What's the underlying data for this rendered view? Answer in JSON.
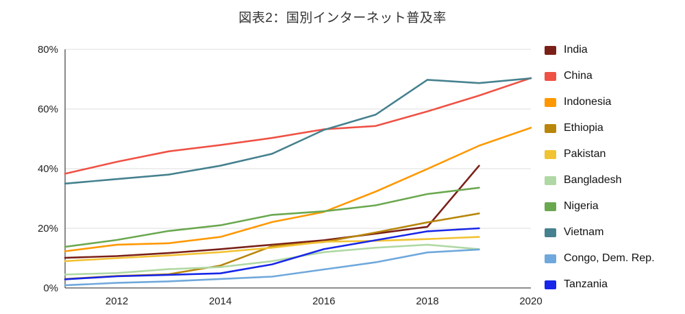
{
  "title": "図表2：国別インターネット普及率",
  "chart_data": {
    "type": "line",
    "unit": "%",
    "x": [
      2011,
      2012,
      2013,
      2014,
      2015,
      2016,
      2017,
      2018,
      2019,
      2020
    ],
    "xlim": [
      2011,
      2020
    ],
    "ylim": [
      0,
      80
    ],
    "grid": true,
    "legend_position": "right",
    "x_ticks": [
      {
        "value": 2012,
        "label": "2012"
      },
      {
        "value": 2014,
        "label": "2014"
      },
      {
        "value": 2016,
        "label": "2016"
      },
      {
        "value": 2018,
        "label": "2018"
      },
      {
        "value": 2020,
        "label": "2020"
      }
    ],
    "y_ticks": [
      {
        "value": 0,
        "label": "0%"
      },
      {
        "value": 20,
        "label": "20%"
      },
      {
        "value": 40,
        "label": "40%"
      },
      {
        "value": 60,
        "label": "60%"
      },
      {
        "value": 80,
        "label": "80%"
      }
    ],
    "series": [
      {
        "name": "India",
        "color": "#7a2018",
        "values": [
          10.1,
          10.7,
          11.7,
          13.0,
          14.5,
          16.0,
          18.2,
          20.5,
          41.0,
          null
        ]
      },
      {
        "name": "China",
        "color": "#ef5144",
        "values": [
          38.3,
          42.3,
          45.8,
          47.9,
          50.3,
          53.2,
          54.3,
          59.2,
          64.5,
          70.4
        ]
      },
      {
        "name": "Indonesia",
        "color": "#ff9800",
        "values": [
          12.3,
          14.5,
          15.0,
          17.1,
          22.1,
          25.5,
          32.3,
          39.9,
          47.7,
          53.7
        ]
      },
      {
        "name": "Ethiopia",
        "color": "#b8860b",
        "values": [
          3.0,
          4.0,
          4.6,
          7.5,
          14.0,
          15.4,
          18.6,
          22.0,
          25.0,
          null
        ]
      },
      {
        "name": "Pakistan",
        "color": "#f1c232",
        "values": [
          9.0,
          10.0,
          10.9,
          12.0,
          13.5,
          15.5,
          15.8,
          16.4,
          17.1,
          null
        ]
      },
      {
        "name": "Bangladesh",
        "color": "#b0d8a4",
        "values": [
          4.5,
          5.0,
          6.3,
          7.0,
          9.0,
          12.0,
          13.5,
          14.5,
          13.0,
          null
        ]
      },
      {
        "name": "Nigeria",
        "color": "#6aa84f",
        "values": [
          13.8,
          16.1,
          19.1,
          21.0,
          24.5,
          25.7,
          27.7,
          31.5,
          33.6,
          null
        ]
      },
      {
        "name": "Vietnam",
        "color": "#45818e",
        "values": [
          35.0,
          36.5,
          38.0,
          41.0,
          45.0,
          53.0,
          58.1,
          69.8,
          68.7,
          70.3
        ]
      },
      {
        "name": "Congo, Dem. Rep.",
        "color": "#6fa8dc",
        "values": [
          0.9,
          1.7,
          2.2,
          3.0,
          3.8,
          6.2,
          8.6,
          11.9,
          12.9,
          null
        ]
      },
      {
        "name": "Tanzania",
        "color": "#1726e8",
        "values": [
          2.9,
          3.9,
          4.4,
          4.9,
          7.9,
          13.0,
          16.0,
          19.0,
          20.0,
          null
        ]
      }
    ]
  }
}
